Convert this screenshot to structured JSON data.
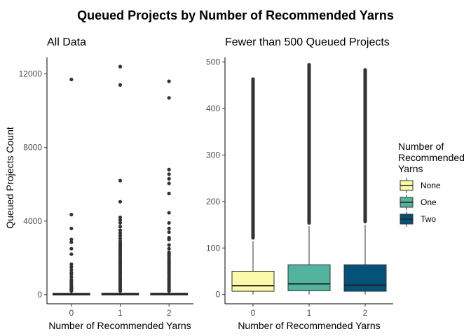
{
  "title": "Queued Projects by Number of Recommended Yarns",
  "chart_data": [
    {
      "type": "box",
      "title": "All Data",
      "xlabel": "Number of Recommended Yarns",
      "ylabel": "Queued Projects Count",
      "categories": [
        "0",
        "1",
        "2"
      ],
      "ylim": [
        -500,
        12900
      ],
      "yticks": [
        0,
        4000,
        8000,
        12000
      ],
      "yticklabels": [
        "0",
        "4000",
        "8000",
        "12000"
      ],
      "boxes": [
        {
          "category": "0",
          "q1": 8,
          "median": 25,
          "q3": 60,
          "whisker_low": 0,
          "whisker_high": 140,
          "outliers": [
            200,
            250,
            300,
            350,
            420,
            500,
            600,
            700,
            800,
            950,
            1100,
            1200,
            1350,
            1500,
            1650,
            2200,
            2500,
            2850,
            3000,
            3600,
            4350,
            11700
          ]
        },
        {
          "category": "1",
          "q1": 8,
          "median": 25,
          "q3": 65,
          "whisker_low": 0,
          "whisker_high": 150,
          "outliers": [
            200,
            300,
            400,
            500,
            600,
            700,
            800,
            900,
            1000,
            1100,
            1200,
            1300,
            1400,
            1500,
            1600,
            1700,
            1800,
            1900,
            2000,
            2100,
            2200,
            2300,
            2400,
            2500,
            2600,
            2700,
            2800,
            2900,
            3050,
            3200,
            3350,
            3500,
            3700,
            3900,
            4050,
            4200,
            5050,
            6200,
            11400,
            12400
          ]
        },
        {
          "category": "2",
          "q1": 8,
          "median": 22,
          "q3": 65,
          "whisker_low": 0,
          "whisker_high": 155,
          "outliers": [
            200,
            300,
            400,
            500,
            600,
            700,
            800,
            900,
            1000,
            1100,
            1200,
            1300,
            1400,
            1500,
            1600,
            1700,
            1800,
            1900,
            2000,
            2100,
            2200,
            2300,
            2500,
            2700,
            3000,
            3100,
            3400,
            3600,
            3900,
            4450,
            5500,
            6050,
            6300,
            6550,
            6800,
            10700,
            11600
          ]
        }
      ]
    },
    {
      "type": "box",
      "title": "Fewer than 500 Queued Projects",
      "xlabel": "Number of Recommended Yarns",
      "ylabel": "",
      "categories": [
        "0",
        "1",
        "2"
      ],
      "ylim": [
        -20,
        510
      ],
      "yticks": [
        0,
        100,
        200,
        300,
        400,
        500
      ],
      "yticklabels": [
        "0",
        "100",
        "200",
        "300",
        "400",
        "500"
      ],
      "boxes": [
        {
          "category": "0",
          "q1": 7,
          "median": 19,
          "q3": 50,
          "whisker_low": 0,
          "whisker_high": 115,
          "outlier_band": [
            118,
            467
          ],
          "color": "#FAFAAA"
        },
        {
          "category": "1",
          "q1": 8,
          "median": 23,
          "q3": 64,
          "whisker_low": 0,
          "whisker_high": 147,
          "outlier_band": [
            150,
            498
          ],
          "color": "#52B39E"
        },
        {
          "category": "2",
          "q1": 7,
          "median": 20,
          "q3": 64,
          "whisker_low": 0,
          "whisker_high": 150,
          "outlier_band": [
            153,
            487
          ],
          "color": "#04527A"
        }
      ],
      "legend": {
        "title_lines": [
          "Number of",
          "Recommended",
          "Yarns"
        ],
        "entries": [
          {
            "label": "None",
            "color": "#FAFAAA"
          },
          {
            "label": "One",
            "color": "#52B39E"
          },
          {
            "label": "Two",
            "color": "#04527A"
          }
        ],
        "position": "right"
      }
    }
  ]
}
